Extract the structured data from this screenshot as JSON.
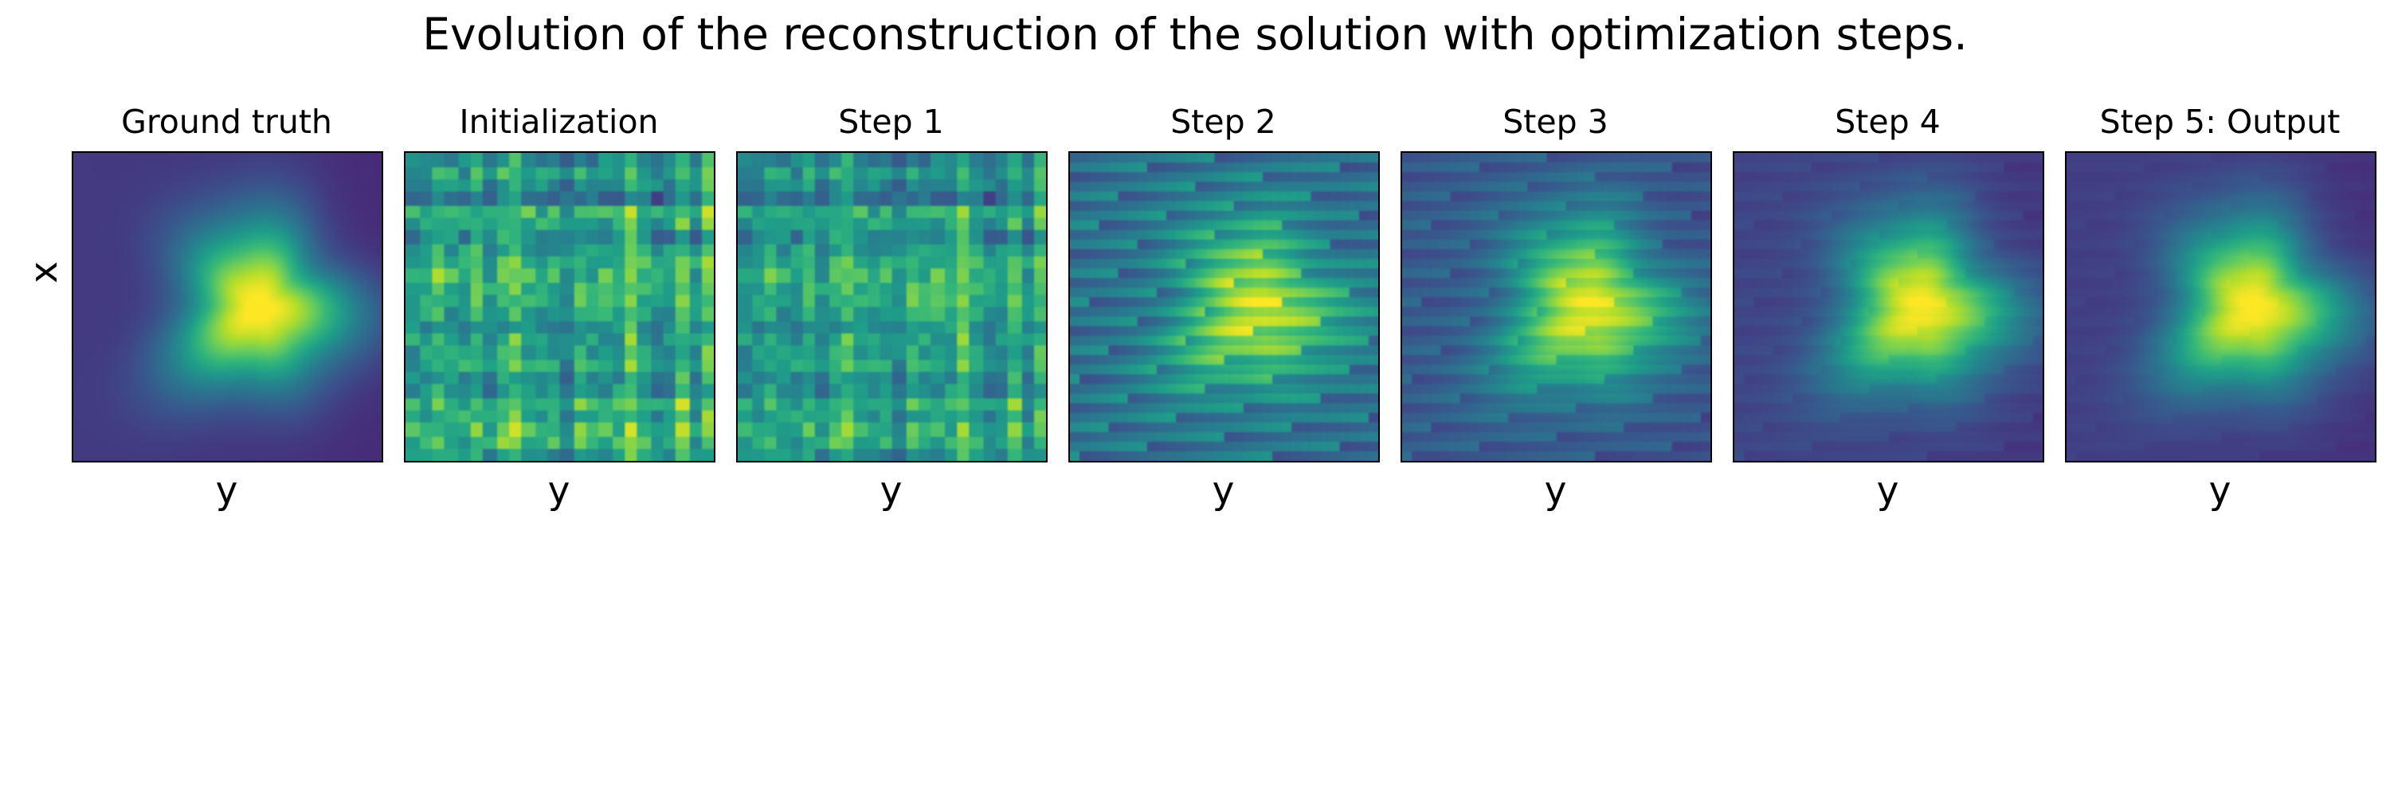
{
  "title": "Evolution of the reconstruction of the solution with optimization steps.",
  "chart_data": {
    "type": "heatmap",
    "colormap": "viridis",
    "grid": false,
    "ylabel": "x",
    "panels": [
      {
        "title": "Ground truth",
        "xlabel": "y",
        "pattern": "smooth-blob",
        "noise": 0.0
      },
      {
        "title": "Initialization",
        "xlabel": "y",
        "pattern": "random-grid-noise",
        "noise": 1.0
      },
      {
        "title": "Step 1",
        "xlabel": "y",
        "pattern": "random-grid-noise",
        "noise": 0.9
      },
      {
        "title": "Step 2",
        "xlabel": "y",
        "pattern": "noisy-blob",
        "noise": 0.55
      },
      {
        "title": "Step 3",
        "xlabel": "y",
        "pattern": "noisy-blob",
        "noise": 0.3
      },
      {
        "title": "Step 4",
        "xlabel": "y",
        "pattern": "noisy-blob",
        "noise": 0.1
      },
      {
        "title": "Step 5: Output",
        "xlabel": "y",
        "pattern": "smooth-blob",
        "noise": 0.05
      }
    ]
  }
}
